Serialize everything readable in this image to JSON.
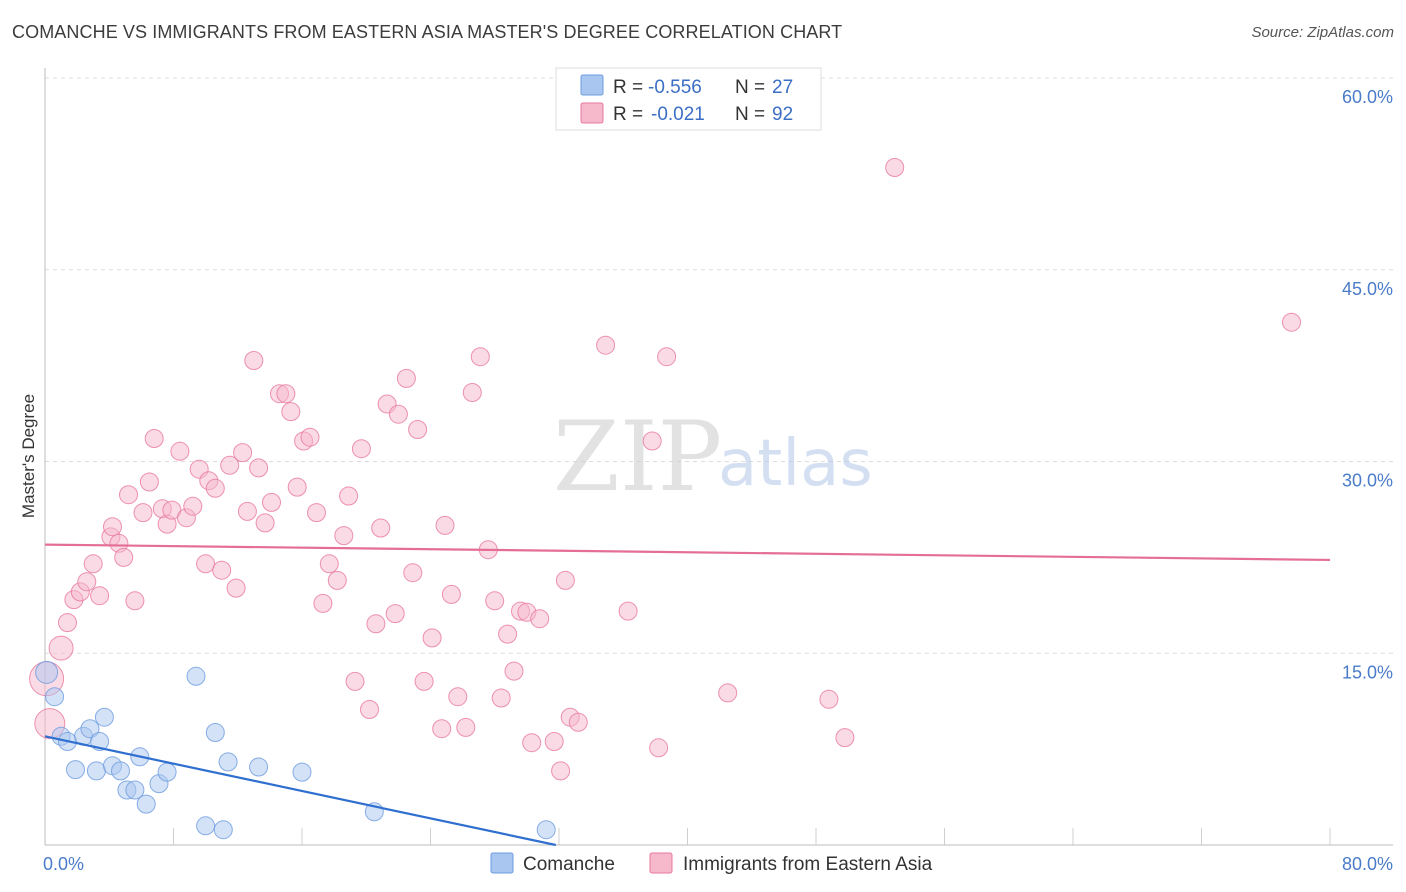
{
  "header": {
    "title": "COMANCHE VS IMMIGRANTS FROM EASTERN ASIA MASTER'S DEGREE CORRELATION CHART",
    "source": "Source: ZipAtlas.com"
  },
  "watermark": {
    "part1": "ZIP",
    "part2": "atlas"
  },
  "legend_top": {
    "rows": [
      {
        "r_label": "R =",
        "r_value": "-0.556",
        "n_label": "N =",
        "n_value": "27",
        "color": "#a9c6f0"
      },
      {
        "r_label": "R =",
        "r_value": "-0.021",
        "n_label": "N =",
        "n_value": "92",
        "color": "#f6b8cb"
      }
    ]
  },
  "legend_bottom": {
    "items": [
      {
        "label": "Comanche",
        "color": "#a9c6f0"
      },
      {
        "label": "Immigrants from Eastern Asia",
        "color": "#f6b8cb"
      }
    ]
  },
  "chart_data": {
    "type": "scatter",
    "title": "COMANCHE VS IMMIGRANTS FROM EASTERN ASIA MASTER'S DEGREE CORRELATION CHART",
    "xlabel": "",
    "ylabel": "Master's Degree",
    "xlim": [
      0,
      80
    ],
    "ylim": [
      0,
      60
    ],
    "x_tick_labels": [
      "0.0%",
      "80.0%"
    ],
    "y_ticks": [
      15,
      30,
      45,
      60
    ],
    "y_tick_labels": [
      "15.0%",
      "30.0%",
      "45.0%",
      "60.0%"
    ],
    "grid": true,
    "legend_position": "top-center",
    "series": [
      {
        "name": "Comanche",
        "color": "#6b9be0",
        "fill": "#a9c6f0",
        "trend": {
          "x": [
            0,
            31.8
          ],
          "y": [
            8.5,
            0
          ]
        },
        "points": [
          {
            "x": 0.1,
            "y": 13.5
          },
          {
            "x": 0.6,
            "y": 11.6
          },
          {
            "x": 1.0,
            "y": 8.5
          },
          {
            "x": 1.4,
            "y": 8.1
          },
          {
            "x": 1.9,
            "y": 5.9
          },
          {
            "x": 2.4,
            "y": 8.5
          },
          {
            "x": 2.8,
            "y": 9.1
          },
          {
            "x": 3.2,
            "y": 5.8
          },
          {
            "x": 3.4,
            "y": 8.1
          },
          {
            "x": 3.7,
            "y": 10.0
          },
          {
            "x": 4.2,
            "y": 6.2
          },
          {
            "x": 4.7,
            "y": 5.8
          },
          {
            "x": 5.1,
            "y": 4.3
          },
          {
            "x": 5.6,
            "y": 4.3
          },
          {
            "x": 5.9,
            "y": 6.9
          },
          {
            "x": 6.3,
            "y": 3.2
          },
          {
            "x": 7.1,
            "y": 4.8
          },
          {
            "x": 7.6,
            "y": 5.7
          },
          {
            "x": 9.4,
            "y": 13.2
          },
          {
            "x": 10.0,
            "y": 1.5
          },
          {
            "x": 10.6,
            "y": 8.8
          },
          {
            "x": 11.1,
            "y": 1.2
          },
          {
            "x": 11.4,
            "y": 6.5
          },
          {
            "x": 13.3,
            "y": 6.1
          },
          {
            "x": 16.0,
            "y": 5.7
          },
          {
            "x": 20.5,
            "y": 2.6
          },
          {
            "x": 31.2,
            "y": 1.2
          }
        ]
      },
      {
        "name": "Immigrants from Eastern Asia",
        "color": "#e8789c",
        "fill": "#f6b8cb",
        "trend": {
          "x": [
            0,
            80
          ],
          "y": [
            23.5,
            22.3
          ]
        },
        "points": [
          {
            "x": 0.1,
            "y": 13.0
          },
          {
            "x": 0.3,
            "y": 9.5
          },
          {
            "x": 1.0,
            "y": 15.4
          },
          {
            "x": 1.4,
            "y": 17.4
          },
          {
            "x": 1.8,
            "y": 19.2
          },
          {
            "x": 2.2,
            "y": 19.8
          },
          {
            "x": 2.6,
            "y": 20.6
          },
          {
            "x": 3.0,
            "y": 22.0
          },
          {
            "x": 3.4,
            "y": 19.5
          },
          {
            "x": 4.1,
            "y": 24.1
          },
          {
            "x": 4.2,
            "y": 24.9
          },
          {
            "x": 4.6,
            "y": 23.6
          },
          {
            "x": 4.9,
            "y": 22.5
          },
          {
            "x": 5.2,
            "y": 27.4
          },
          {
            "x": 5.6,
            "y": 19.1
          },
          {
            "x": 6.1,
            "y": 26.0
          },
          {
            "x": 6.5,
            "y": 28.4
          },
          {
            "x": 6.8,
            "y": 31.8
          },
          {
            "x": 7.3,
            "y": 26.3
          },
          {
            "x": 7.6,
            "y": 25.1
          },
          {
            "x": 7.9,
            "y": 26.2
          },
          {
            "x": 8.4,
            "y": 30.8
          },
          {
            "x": 8.8,
            "y": 25.6
          },
          {
            "x": 9.2,
            "y": 26.5
          },
          {
            "x": 9.6,
            "y": 29.4
          },
          {
            "x": 10.0,
            "y": 22.0
          },
          {
            "x": 10.2,
            "y": 28.5
          },
          {
            "x": 10.6,
            "y": 27.9
          },
          {
            "x": 11.0,
            "y": 21.5
          },
          {
            "x": 11.5,
            "y": 29.7
          },
          {
            "x": 11.9,
            "y": 20.1
          },
          {
            "x": 12.3,
            "y": 30.7
          },
          {
            "x": 12.6,
            "y": 26.1
          },
          {
            "x": 13.0,
            "y": 37.9
          },
          {
            "x": 13.3,
            "y": 29.5
          },
          {
            "x": 13.7,
            "y": 25.2
          },
          {
            "x": 14.1,
            "y": 26.8
          },
          {
            "x": 14.6,
            "y": 35.3
          },
          {
            "x": 15.0,
            "y": 35.3
          },
          {
            "x": 15.3,
            "y": 33.9
          },
          {
            "x": 15.7,
            "y": 28.0
          },
          {
            "x": 16.1,
            "y": 31.6
          },
          {
            "x": 16.5,
            "y": 31.9
          },
          {
            "x": 16.9,
            "y": 26.0
          },
          {
            "x": 17.3,
            "y": 18.9
          },
          {
            "x": 17.7,
            "y": 22.0
          },
          {
            "x": 18.2,
            "y": 20.7
          },
          {
            "x": 18.6,
            "y": 24.2
          },
          {
            "x": 18.9,
            "y": 27.3
          },
          {
            "x": 19.3,
            "y": 12.8
          },
          {
            "x": 19.7,
            "y": 31.0
          },
          {
            "x": 20.2,
            "y": 10.6
          },
          {
            "x": 20.6,
            "y": 17.3
          },
          {
            "x": 20.9,
            "y": 24.8
          },
          {
            "x": 21.3,
            "y": 34.5
          },
          {
            "x": 21.8,
            "y": 18.1
          },
          {
            "x": 22.0,
            "y": 33.7
          },
          {
            "x": 22.5,
            "y": 36.5
          },
          {
            "x": 22.9,
            "y": 21.3
          },
          {
            "x": 23.2,
            "y": 32.5
          },
          {
            "x": 23.6,
            "y": 12.8
          },
          {
            "x": 24.1,
            "y": 16.2
          },
          {
            "x": 24.7,
            "y": 9.1
          },
          {
            "x": 24.9,
            "y": 25.0
          },
          {
            "x": 25.3,
            "y": 19.6
          },
          {
            "x": 25.7,
            "y": 11.6
          },
          {
            "x": 26.2,
            "y": 9.2
          },
          {
            "x": 26.6,
            "y": 35.4
          },
          {
            "x": 27.1,
            "y": 38.2
          },
          {
            "x": 27.6,
            "y": 23.1
          },
          {
            "x": 28.0,
            "y": 19.1
          },
          {
            "x": 28.4,
            "y": 11.5
          },
          {
            "x": 28.8,
            "y": 16.5
          },
          {
            "x": 29.2,
            "y": 13.6
          },
          {
            "x": 29.6,
            "y": 18.3
          },
          {
            "x": 30.0,
            "y": 18.2
          },
          {
            "x": 30.3,
            "y": 8.0
          },
          {
            "x": 30.8,
            "y": 17.7
          },
          {
            "x": 31.7,
            "y": 8.1
          },
          {
            "x": 32.1,
            "y": 5.8
          },
          {
            "x": 32.4,
            "y": 20.7
          },
          {
            "x": 32.7,
            "y": 10.0
          },
          {
            "x": 33.2,
            "y": 9.6
          },
          {
            "x": 34.9,
            "y": 39.1
          },
          {
            "x": 36.3,
            "y": 18.3
          },
          {
            "x": 37.8,
            "y": 31.6
          },
          {
            "x": 38.2,
            "y": 7.6
          },
          {
            "x": 38.7,
            "y": 38.2
          },
          {
            "x": 42.5,
            "y": 11.9
          },
          {
            "x": 48.8,
            "y": 11.4
          },
          {
            "x": 49.8,
            "y": 8.4
          },
          {
            "x": 52.9,
            "y": 53.0
          },
          {
            "x": 77.6,
            "y": 40.9
          }
        ]
      }
    ]
  }
}
